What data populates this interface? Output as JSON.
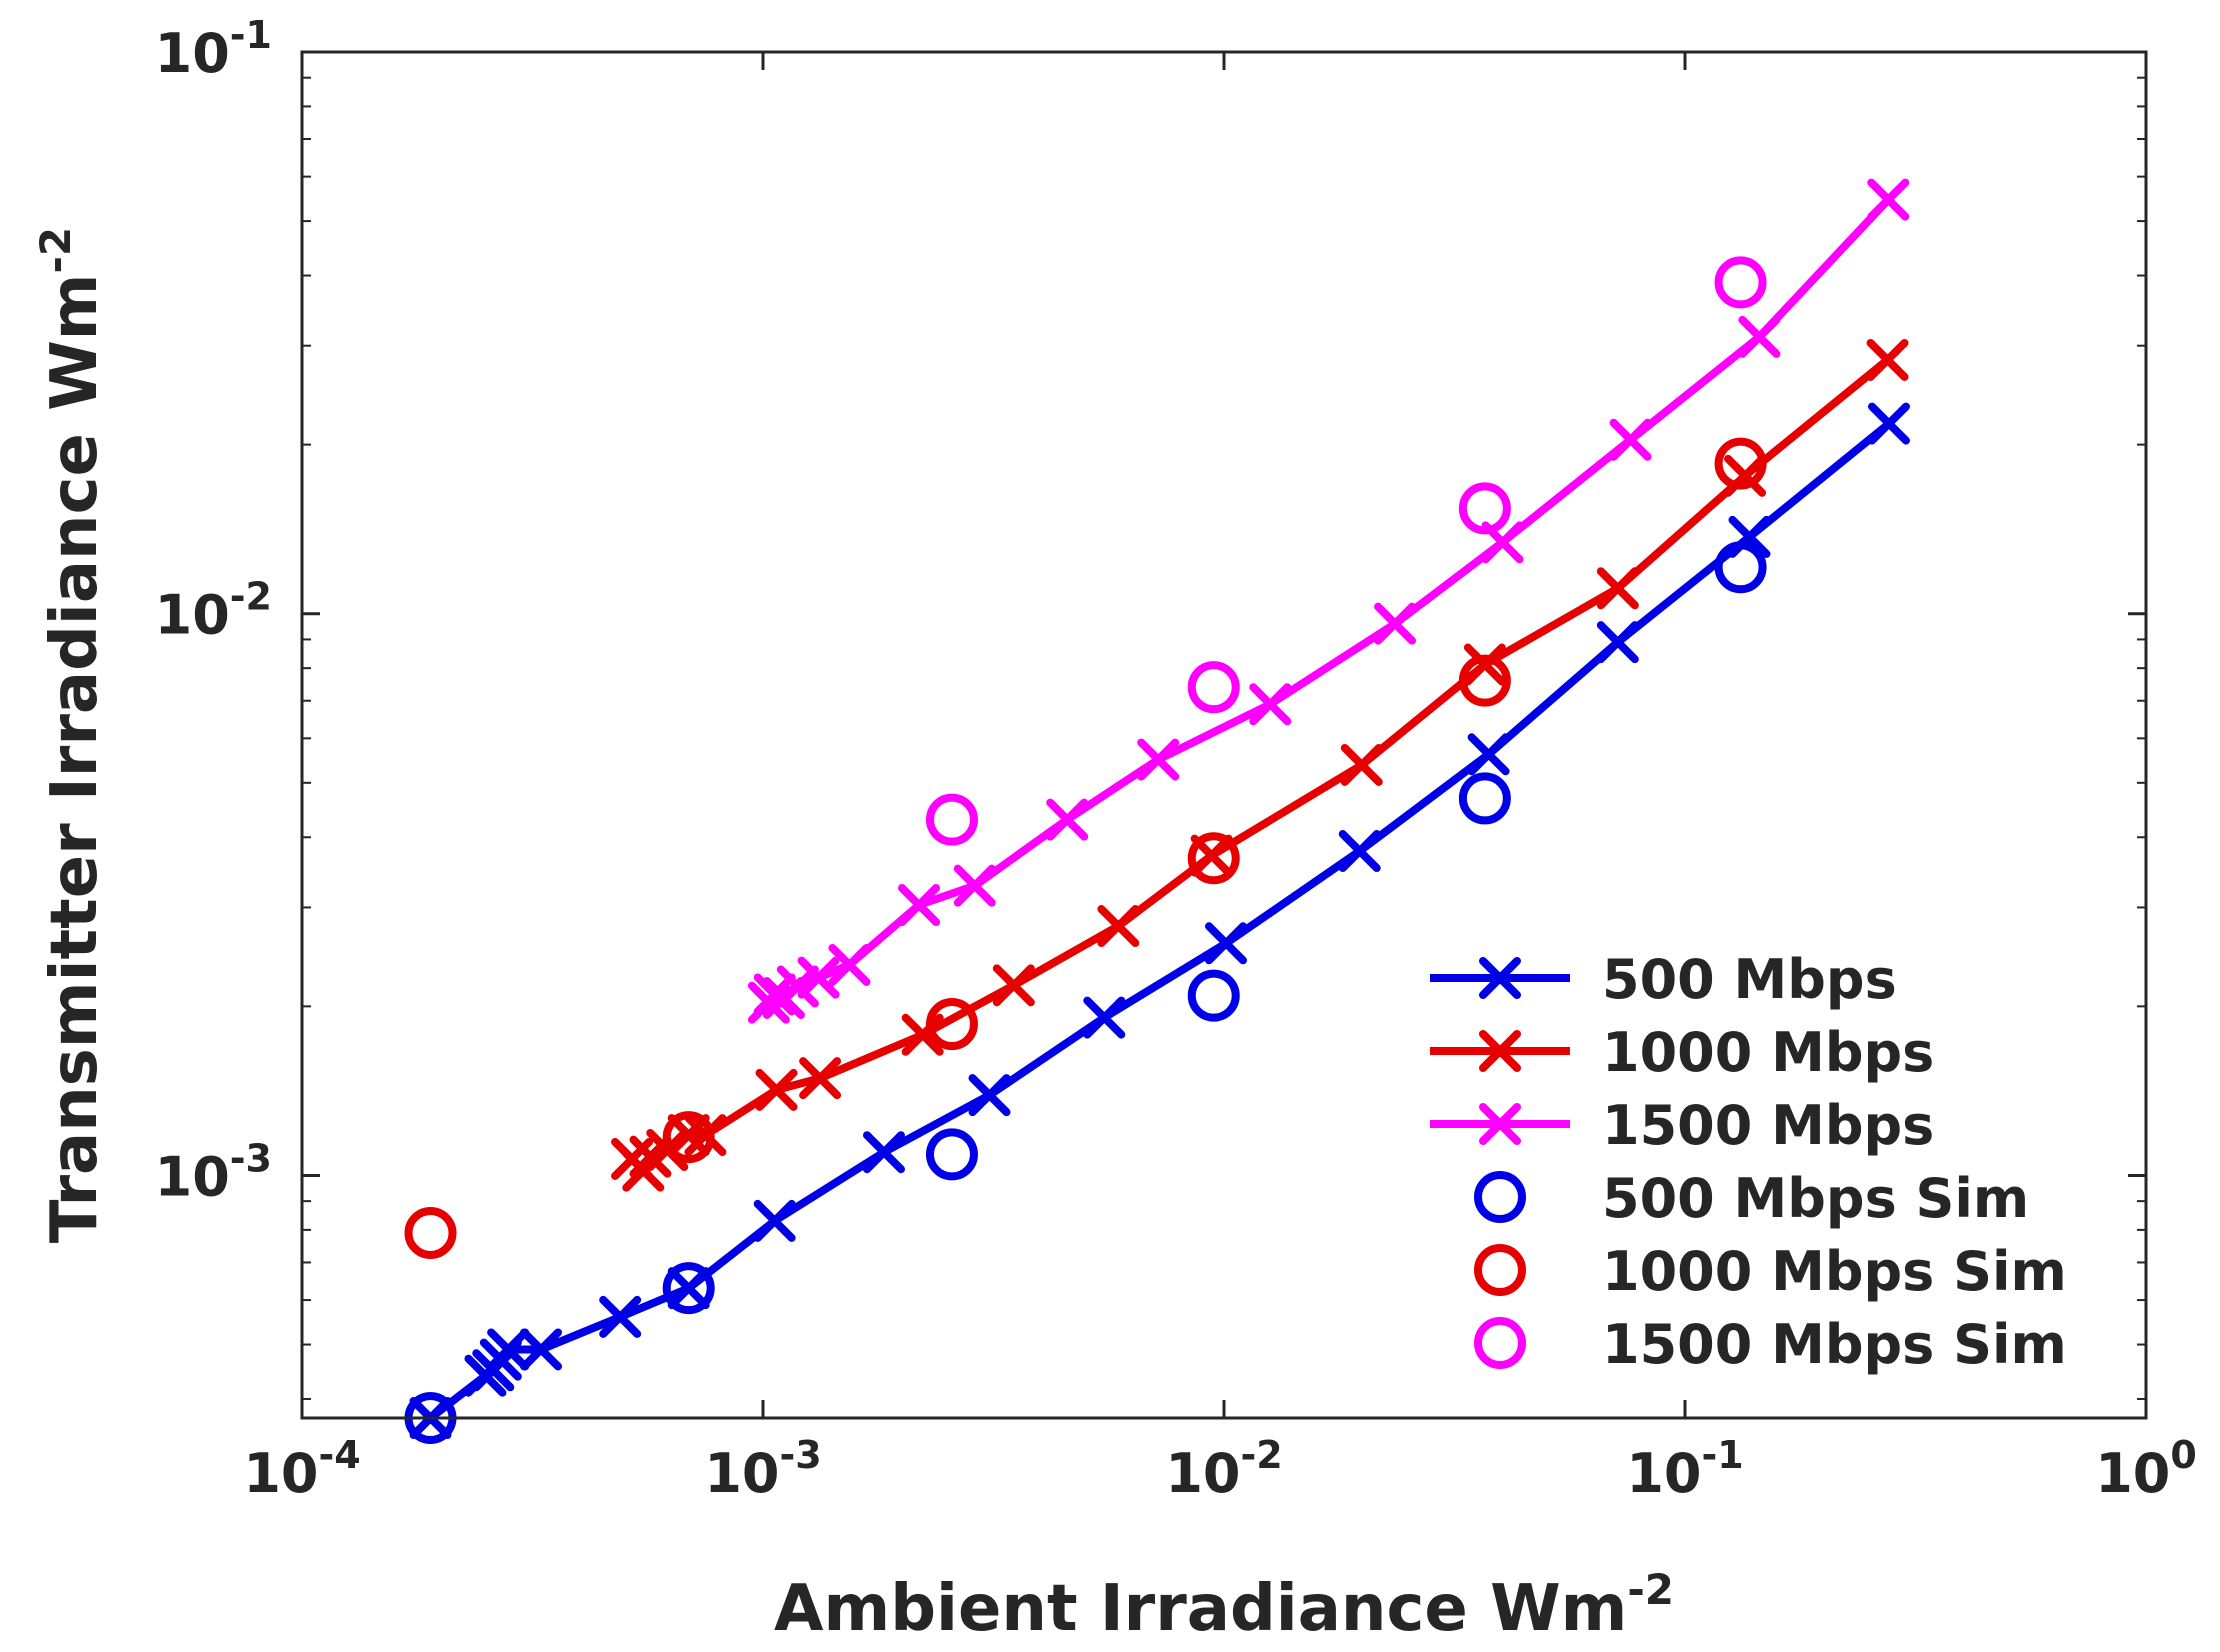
{
  "chart_data": {
    "type": "line",
    "scale": "log-log",
    "title": "",
    "xlabel": {
      "main": "Ambient Irradiance Wm",
      "sup": "-2"
    },
    "ylabel": {
      "main": "Transmitter Irradiance Wm",
      "sup": "-2"
    },
    "xlim": [
      0.0001,
      1
    ],
    "ylim": [
      0.00037,
      0.1
    ],
    "x_ticks": [
      {
        "value": 0.0001,
        "base": "10",
        "exp": "-4"
      },
      {
        "value": 0.001,
        "base": "10",
        "exp": "-3"
      },
      {
        "value": 0.01,
        "base": "10",
        "exp": "-2"
      },
      {
        "value": 0.1,
        "base": "10",
        "exp": "-1"
      },
      {
        "value": 1,
        "base": "10",
        "exp": "0"
      }
    ],
    "y_ticks": [
      {
        "value": 0.001,
        "base": "10",
        "exp": "-3"
      },
      {
        "value": 0.01,
        "base": "10",
        "exp": "-2"
      },
      {
        "value": 0.1,
        "base": "10",
        "exp": "-1"
      }
    ],
    "grid": false,
    "box": true,
    "legend": {
      "position": "bottom-right"
    },
    "series": [
      {
        "name": "500 Mbps",
        "kind": "line-x",
        "color": "#0000e6",
        "x": [
          0.00019,
          0.00025,
          0.00026,
          0.00027,
          0.00028,
          0.00033,
          0.00049,
          0.00069,
          0.00106,
          0.00183,
          0.0031,
          0.0055,
          0.0101,
          0.0197,
          0.0375,
          0.0715,
          0.138,
          0.277
        ],
        "y": [
          0.00037,
          0.00044,
          0.00045,
          0.00047,
          0.00049,
          0.00049,
          0.00056,
          0.00063,
          0.00083,
          0.0011,
          0.00139,
          0.00191,
          0.00259,
          0.00378,
          0.00562,
          0.0089,
          0.0137,
          0.0218
        ]
      },
      {
        "name": "1000 Mbps",
        "kind": "line-x",
        "color": "#e60000",
        "x": [
          0.00052,
          0.00055,
          0.00057,
          0.00062,
          0.00069,
          0.00075,
          0.00107,
          0.00133,
          0.00222,
          0.0035,
          0.0059,
          0.0094,
          0.0199,
          0.0368,
          0.0715,
          0.135,
          0.275
        ],
        "y": [
          0.00107,
          0.00102,
          0.00108,
          0.00111,
          0.00118,
          0.00118,
          0.00142,
          0.00149,
          0.00178,
          0.00218,
          0.00278,
          0.00371,
          0.00538,
          0.00812,
          0.0111,
          0.0176,
          0.0283
        ]
      },
      {
        "name": "1500 Mbps",
        "kind": "line-x",
        "color": "#ff00ff",
        "x": [
          0.00103,
          0.00106,
          0.00111,
          0.00119,
          0.00132,
          0.00154,
          0.00218,
          0.00288,
          0.00457,
          0.0072,
          0.0126,
          0.0235,
          0.0402,
          0.0762,
          0.145,
          0.276
        ],
        "y": [
          0.00203,
          0.0021,
          0.00207,
          0.00217,
          0.00225,
          0.00237,
          0.00303,
          0.00328,
          0.0043,
          0.0055,
          0.0069,
          0.0096,
          0.0134,
          0.0204,
          0.0311,
          0.0546
        ]
      },
      {
        "name": "500 Mbps Sim",
        "kind": "circle",
        "color": "#0000e6",
        "x": [
          0.00019,
          0.00069,
          0.00257,
          0.0095,
          0.0368,
          0.132
        ],
        "y": [
          0.00037,
          0.00063,
          0.00109,
          0.00209,
          0.00469,
          0.0121
        ]
      },
      {
        "name": "1000 Mbps Sim",
        "kind": "circle",
        "color": "#e60000",
        "x": [
          0.00019,
          0.00069,
          0.00257,
          0.0095,
          0.0368,
          0.132
        ],
        "y": [
          0.00079,
          0.00117,
          0.00186,
          0.00367,
          0.0076,
          0.0185
        ]
      },
      {
        "name": "1500 Mbps Sim",
        "kind": "circle",
        "color": "#ff00ff",
        "x": [
          0.00257,
          0.0095,
          0.0368,
          0.132
        ],
        "y": [
          0.0043,
          0.0074,
          0.0154,
          0.0389
        ]
      }
    ]
  }
}
